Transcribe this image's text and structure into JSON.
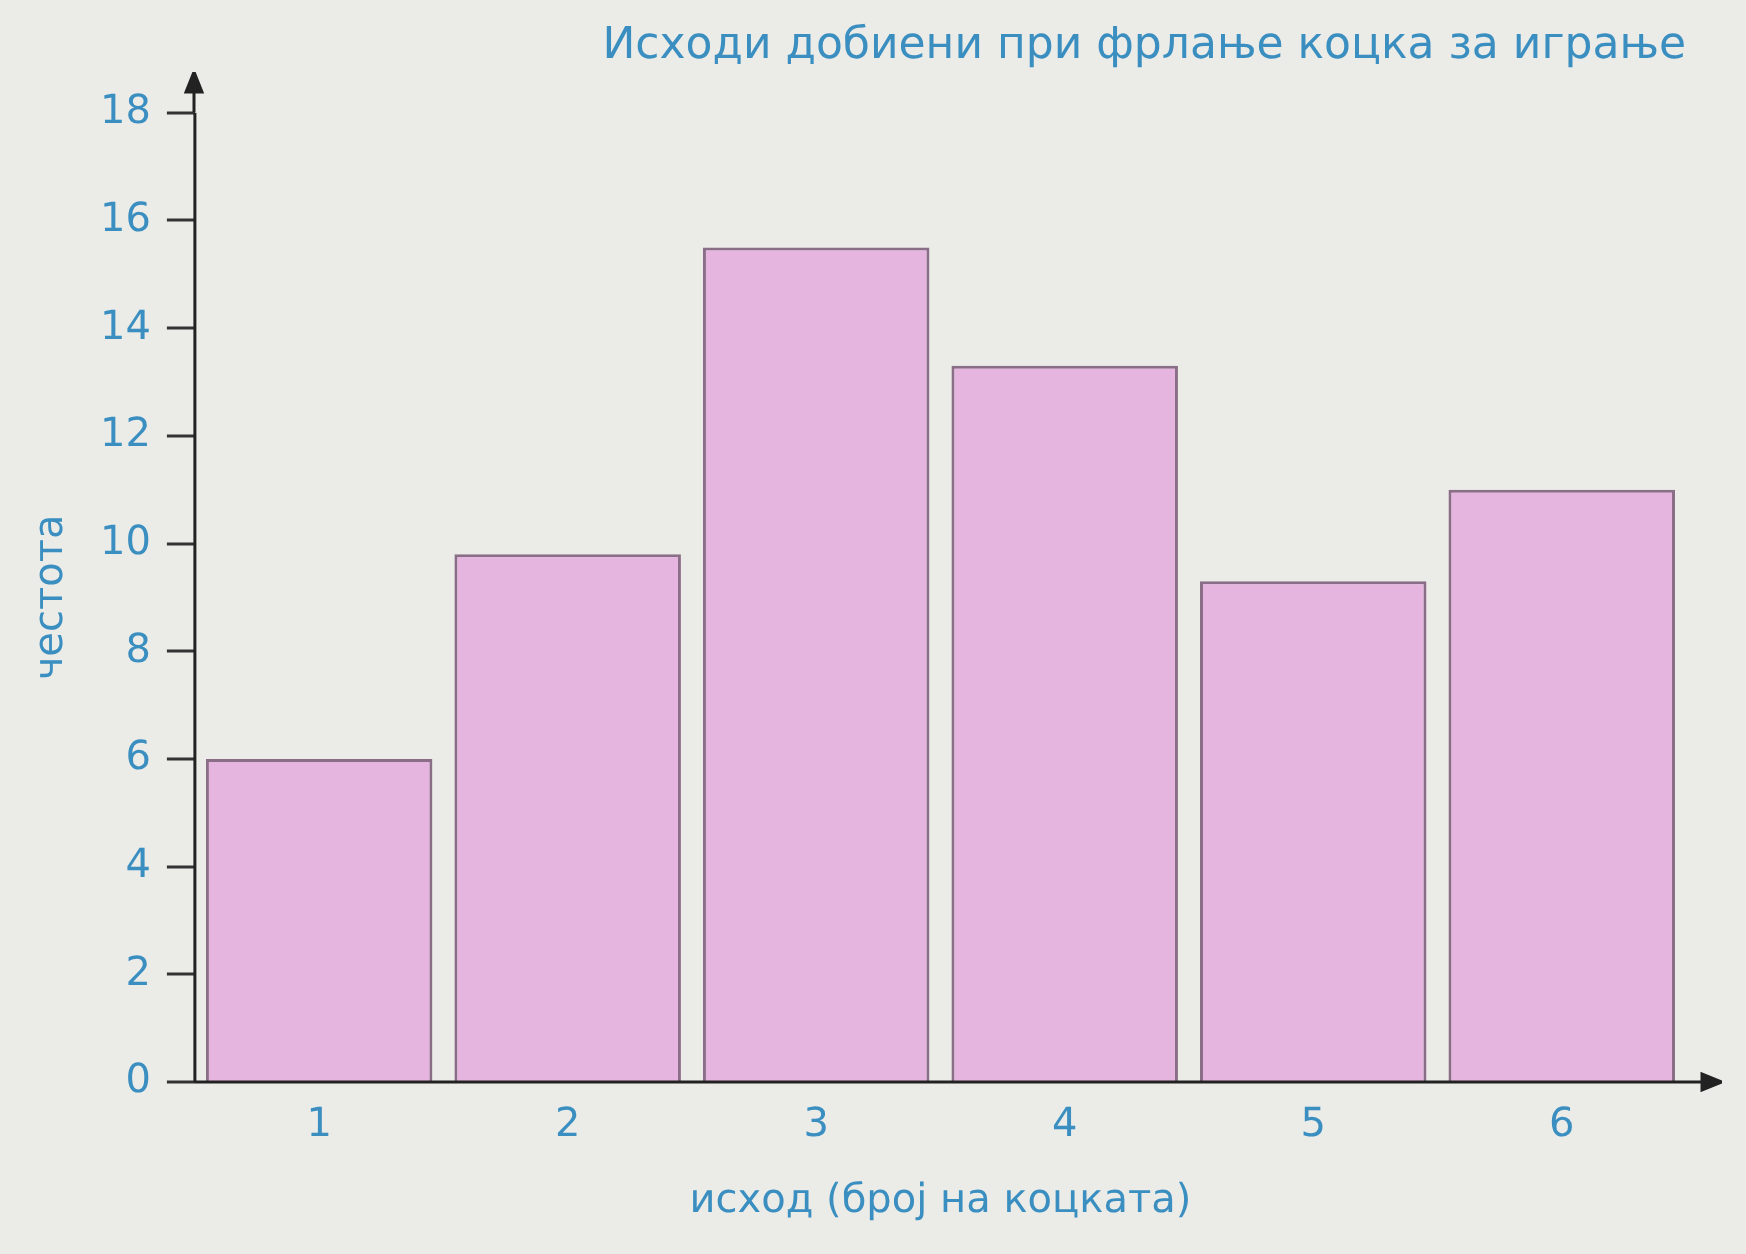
{
  "chart_data": {
    "type": "bar",
    "title": "Исходи добиени при фрлање коцка за играње",
    "xlabel": "исход (број на коцката)",
    "ylabel": "честота",
    "categories": [
      "1",
      "2",
      "3",
      "4",
      "5",
      "6"
    ],
    "values": [
      6,
      9.8,
      15.5,
      13.3,
      9.3,
      11
    ],
    "color": "#e6b5df",
    "ylim": [
      0,
      18
    ],
    "yticks": [
      0,
      2,
      4,
      6,
      8,
      10,
      12,
      14,
      16,
      18
    ],
    "grid": false
  }
}
